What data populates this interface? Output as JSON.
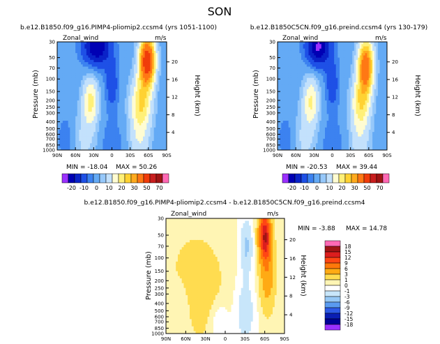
{
  "season": "SON",
  "chart_data": [
    {
      "type": "heatmap",
      "title": "b.e12.B1850.f09_g16.PIMP4-pliomip2.ccsm4 (yrs 1051-1100)",
      "variable": "Zonal_wind",
      "units": "m/s",
      "xlabel": "",
      "ylabel": "Pressure (mb)",
      "ylabel_right": "Height (km)",
      "x_ticks": [
        "90N",
        "60N",
        "30N",
        "0",
        "30S",
        "60S",
        "90S"
      ],
      "y_ticks": [
        "30",
        "50",
        "70",
        "100",
        "150",
        "200",
        "250",
        "300",
        "400",
        "500",
        "600",
        "700",
        "850",
        "1000"
      ],
      "height_ticks": [
        "4",
        "8",
        "12",
        "16",
        "20"
      ],
      "min_label": "MIN = -18.04",
      "max_label": "MAX = 50.26",
      "features": [
        {
          "lat": -58,
          "p": 60,
          "value": 50
        },
        {
          "lat": -48,
          "p": 200,
          "value": 25
        },
        {
          "lat": 34,
          "p": 200,
          "value": 18
        },
        {
          "lat": 22,
          "p": 40,
          "value": -18
        }
      ],
      "colorbar_labels": [
        "-20",
        "-10",
        "0",
        "10",
        "20",
        "30",
        "50",
        "70"
      ]
    },
    {
      "type": "heatmap",
      "title": "b.e12.B1850C5CN.f09_g16.preind.ccsm4 (yrs 130-179)",
      "variable": "Zonal_wind",
      "units": "m/s",
      "xlabel": "",
      "ylabel": "Pressure (mb)",
      "ylabel_right": "Height (km)",
      "x_ticks": [
        "90N",
        "60N",
        "30N",
        "0",
        "30S",
        "60S",
        "90S"
      ],
      "y_ticks": [
        "30",
        "50",
        "70",
        "100",
        "150",
        "200",
        "250",
        "300",
        "400",
        "500",
        "600",
        "700",
        "850",
        "1000"
      ],
      "height_ticks": [
        "4",
        "8",
        "12",
        "16",
        "20"
      ],
      "min_label": "MIN = -20.53",
      "max_label": "MAX = 39.44",
      "features": [
        {
          "lat": -55,
          "p": 70,
          "value": 39
        },
        {
          "lat": -47,
          "p": 200,
          "value": 22
        },
        {
          "lat": 34,
          "p": 200,
          "value": 17
        },
        {
          "lat": 22,
          "p": 40,
          "value": -20
        }
      ],
      "colorbar_labels": [
        "-20",
        "-10",
        "0",
        "10",
        "20",
        "30",
        "50",
        "70"
      ]
    },
    {
      "type": "heatmap",
      "title": "b.e12.B1850.f09_g16.PIMP4-pliomip2.ccsm4 - b.e12.B1850C5CN.f09_g16.preind.ccsm4",
      "variable": "Zonal_wind",
      "units": "m/s",
      "xlabel": "",
      "ylabel": "Pressure (mb)",
      "ylabel_right": "Height (km)",
      "x_ticks": [
        "90N",
        "60N",
        "30N",
        "0",
        "30S",
        "60S",
        "90S"
      ],
      "y_ticks": [
        "30",
        "50",
        "70",
        "100",
        "150",
        "200",
        "250",
        "300",
        "400",
        "500",
        "600",
        "700",
        "850",
        "1000"
      ],
      "height_ticks": [
        "4",
        "8",
        "12",
        "16",
        "20"
      ],
      "min_label": "MIN = -3.88",
      "max_label": "MAX = 14.78",
      "features": [
        {
          "lat": -60,
          "p": 50,
          "value": 14.8
        },
        {
          "lat": -65,
          "p": 150,
          "value": 5
        },
        {
          "lat": -30,
          "p": 70,
          "value": -3.9
        },
        {
          "lat": -30,
          "p": 500,
          "value": -2
        }
      ],
      "colorbar_labels": [
        "18",
        "15",
        "12",
        "9",
        "6",
        "3",
        "1",
        "0",
        "-1",
        "-3",
        "-6",
        "-9",
        "-12",
        "-15",
        "-18"
      ]
    }
  ],
  "colors": {
    "abs_scale": [
      "#9b30ff",
      "#0000b4",
      "#0a23c8",
      "#1e50e6",
      "#3c82f0",
      "#64aaf5",
      "#96c8fa",
      "#c3e1fc",
      "#fffcd2",
      "#fff078",
      "#ffd232",
      "#ffaa1e",
      "#ff7814",
      "#f03c0a",
      "#c81e1e",
      "#a01414",
      "#ff69b4"
    ],
    "diff_scale": [
      "#ff69b4",
      "#a01414",
      "#dc1e1e",
      "#ff4614",
      "#ff780a",
      "#ffaa14",
      "#ffdc50",
      "#fff5b4",
      "#ffffff",
      "#c8e6fa",
      "#96c8f5",
      "#5a9bf0",
      "#2d5ae6",
      "#0a1eb4",
      "#000096",
      "#9b30ff"
    ]
  }
}
